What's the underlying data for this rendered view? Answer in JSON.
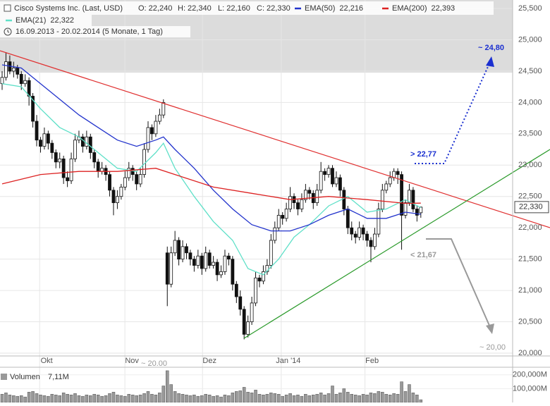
{
  "chart_data": {
    "type": "candlestick",
    "title": "Cisco Systems Inc. (Last, USD)",
    "ohlc_header": [
      "O: 22,240",
      "H: 22,340",
      "L: 22,160",
      "C: 22,330"
    ],
    "period": "16.09.2013 - 20.02.2014 (5 Monate, 1 Tag)",
    "last_price_label": "22,330",
    "up_color": "#ffffff",
    "down_color": "#111111",
    "ylim": [
      20000,
      25500
    ],
    "yticks": [
      {
        "value": 20000,
        "label": "20,000"
      },
      {
        "value": 20500,
        "label": "20,500"
      },
      {
        "value": 21000,
        "label": "21,000"
      },
      {
        "value": 21500,
        "label": "21,500"
      },
      {
        "value": 22000,
        "label": "22,000"
      },
      {
        "value": 22500,
        "label": "22,500"
      },
      {
        "value": 23000,
        "label": "23,000"
      },
      {
        "value": 23500,
        "label": "23,500"
      },
      {
        "value": 24000,
        "label": "24,000"
      },
      {
        "value": 24500,
        "label": "24,500"
      },
      {
        "value": 25000,
        "label": "25,000"
      },
      {
        "value": 25500,
        "label": "25,500"
      }
    ],
    "xlim": [
      -0.55,
      132.9
    ],
    "xticks": [
      {
        "value": 11.6,
        "label": "Okt"
      },
      {
        "value": 33.8,
        "label": "Nov"
      },
      {
        "value": 54,
        "label": "Dez"
      },
      {
        "value": 74.5,
        "label": "Jan '14"
      },
      {
        "value": 96.3,
        "label": "Feb"
      }
    ],
    "grid": true,
    "ohlc": [
      [
        24300,
        24500,
        24200,
        24400
      ],
      [
        24400,
        24800,
        24350,
        24650
      ],
      [
        24650,
        24750,
        24450,
        24500
      ],
      [
        24500,
        24650,
        24400,
        24550
      ],
      [
        24550,
        24600,
        24380,
        24450
      ],
      [
        24450,
        24500,
        24200,
        24300
      ],
      [
        24300,
        24450,
        24250,
        24350
      ],
      [
        24350,
        24400,
        23950,
        24100
      ],
      [
        24100,
        24150,
        23600,
        23700
      ],
      [
        23700,
        23800,
        23300,
        23400
      ],
      [
        23400,
        23450,
        23200,
        23300
      ],
      [
        23300,
        23600,
        23250,
        23500
      ],
      [
        23500,
        23550,
        23250,
        23350
      ],
      [
        23350,
        23400,
        23100,
        23200
      ],
      [
        23200,
        23250,
        22950,
        23050
      ],
      [
        23050,
        23200,
        22950,
        23100
      ],
      [
        23100,
        23150,
        22700,
        22800
      ],
      [
        22800,
        22900,
        22650,
        22750
      ],
      [
        22750,
        23200,
        22700,
        23100
      ],
      [
        23100,
        23500,
        23050,
        23400
      ],
      [
        23400,
        23550,
        23350,
        23450
      ],
      [
        23450,
        23500,
        23200,
        23300
      ],
      [
        23300,
        23550,
        23250,
        23450
      ],
      [
        23450,
        23500,
        23100,
        23200
      ],
      [
        23200,
        23250,
        22950,
        23050
      ],
      [
        23050,
        23100,
        22800,
        22900
      ],
      [
        22900,
        23050,
        22850,
        22950
      ],
      [
        22950,
        23000,
        22750,
        22850
      ],
      [
        22850,
        22900,
        22500,
        22600
      ],
      [
        22600,
        22650,
        22200,
        22400
      ],
      [
        22400,
        22600,
        22300,
        22500
      ],
      [
        22500,
        22700,
        22450,
        22650
      ],
      [
        22650,
        22900,
        22600,
        22800
      ],
      [
        22800,
        23050,
        22750,
        22950
      ],
      [
        22950,
        23000,
        22750,
        22850
      ],
      [
        22850,
        22900,
        22600,
        22700
      ],
      [
        22700,
        22950,
        22650,
        22850
      ],
      [
        22850,
        23350,
        22800,
        23250
      ],
      [
        23250,
        23700,
        23200,
        23600
      ],
      [
        23600,
        23650,
        23400,
        23500
      ],
      [
        23500,
        23800,
        23450,
        23700
      ],
      [
        23700,
        23900,
        23650,
        23800
      ],
      [
        23800,
        24050,
        23750,
        24000
      ],
      [
        21600,
        21700,
        20750,
        21100
      ],
      [
        21100,
        21700,
        21050,
        21600
      ],
      [
        21600,
        21950,
        21550,
        21800
      ],
      [
        21800,
        21850,
        21400,
        21500
      ],
      [
        21500,
        21800,
        21450,
        21700
      ],
      [
        21700,
        21750,
        21500,
        21600
      ],
      [
        21600,
        21650,
        21400,
        21500
      ],
      [
        21500,
        21550,
        21300,
        21400
      ],
      [
        21400,
        21650,
        21350,
        21550
      ],
      [
        21550,
        21600,
        21250,
        21350
      ],
      [
        21350,
        21700,
        21300,
        21600
      ],
      [
        21600,
        21650,
        21350,
        21400
      ],
      [
        21400,
        21550,
        21350,
        21450
      ],
      [
        21450,
        21500,
        21150,
        21250
      ],
      [
        21250,
        21400,
        21200,
        21300
      ],
      [
        21300,
        21650,
        21250,
        21550
      ],
      [
        21550,
        21600,
        21400,
        21500
      ],
      [
        21500,
        21550,
        21000,
        21100
      ],
      [
        21100,
        21150,
        20800,
        20900
      ],
      [
        20900,
        21000,
        20600,
        20700
      ],
      [
        20700,
        20750,
        20220,
        20300
      ],
      [
        20300,
        20600,
        20250,
        20500
      ],
      [
        20500,
        20900,
        20450,
        20800
      ],
      [
        20800,
        21300,
        20750,
        21200
      ],
      [
        21200,
        21250,
        21050,
        21150
      ],
      [
        21150,
        21400,
        21100,
        21300
      ],
      [
        21300,
        21500,
        21250,
        21400
      ],
      [
        21400,
        21900,
        21350,
        21800
      ],
      [
        21800,
        22100,
        21750,
        22000
      ],
      [
        22000,
        22300,
        21950,
        22200
      ],
      [
        22200,
        22250,
        22050,
        22150
      ],
      [
        22150,
        22400,
        22100,
        22300
      ],
      [
        22300,
        22650,
        22250,
        22500
      ],
      [
        22500,
        22550,
        22300,
        22400
      ],
      [
        22400,
        22450,
        22200,
        22300
      ],
      [
        22300,
        22550,
        22250,
        22450
      ],
      [
        22450,
        22700,
        22400,
        22600
      ],
      [
        22600,
        22650,
        22450,
        22550
      ],
      [
        22550,
        22600,
        22300,
        22400
      ],
      [
        22400,
        22700,
        22350,
        22600
      ],
      [
        22600,
        23050,
        22550,
        22900
      ],
      [
        22900,
        22950,
        22750,
        22850
      ],
      [
        22850,
        23000,
        22800,
        22950
      ],
      [
        22950,
        23000,
        22650,
        22700
      ],
      [
        22700,
        22900,
        22650,
        22800
      ],
      [
        22800,
        22850,
        22500,
        22600
      ],
      [
        22600,
        22650,
        22200,
        22300
      ],
      [
        22300,
        22350,
        21900,
        22000
      ],
      [
        22000,
        22100,
        21800,
        21900
      ],
      [
        21900,
        21950,
        21750,
        21850
      ],
      [
        21850,
        22100,
        21800,
        22000
      ],
      [
        22000,
        22050,
        21800,
        21900
      ],
      [
        21900,
        21950,
        21700,
        21800
      ],
      [
        21800,
        21850,
        21450,
        21700
      ],
      [
        21700,
        22000,
        21650,
        21900
      ],
      [
        21900,
        22400,
        21850,
        22300
      ],
      [
        22300,
        22700,
        22250,
        22600
      ],
      [
        22600,
        22750,
        22550,
        22700
      ],
      [
        22700,
        22900,
        22650,
        22800
      ],
      [
        22800,
        22950,
        22750,
        22900
      ],
      [
        22900,
        22950,
        22700,
        22850
      ],
      [
        22850,
        22900,
        21650,
        22200
      ],
      [
        22200,
        22450,
        22150,
        22400
      ],
      [
        22400,
        22700,
        22350,
        22600
      ],
      [
        22600,
        22650,
        22250,
        22300
      ],
      [
        22300,
        22350,
        22100,
        22200
      ],
      [
        22240,
        22340,
        22160,
        22330
      ]
    ],
    "series": [
      {
        "name": "EMA(21)",
        "value_label": "22,322",
        "color": "#5fe0c8",
        "x": [
          0,
          5,
          10,
          15,
          20,
          25,
          30,
          35,
          40,
          42,
          45,
          50,
          55,
          60,
          64,
          68,
          72,
          76,
          80,
          85,
          90,
          95,
          100,
          105,
          109
        ],
        "values": [
          24300,
          24250,
          23900,
          23600,
          23450,
          23200,
          22950,
          22900,
          23200,
          23350,
          22950,
          22500,
          22100,
          21800,
          21350,
          21250,
          21500,
          21850,
          22050,
          22350,
          22500,
          22250,
          22300,
          22450,
          22322
        ]
      },
      {
        "name": "EMA(50)",
        "value_label": "22,216",
        "color": "#2233cc",
        "x": [
          0,
          5,
          10,
          15,
          20,
          25,
          30,
          35,
          40,
          42,
          45,
          50,
          55,
          60,
          65,
          70,
          75,
          80,
          85,
          90,
          95,
          100,
          105,
          109
        ],
        "values": [
          24600,
          24550,
          24300,
          24050,
          23800,
          23600,
          23400,
          23300,
          23400,
          23450,
          23250,
          22950,
          22600,
          22300,
          22050,
          21950,
          21950,
          22050,
          22200,
          22300,
          22150,
          22150,
          22250,
          22216
        ]
      },
      {
        "name": "EMA(200)",
        "value_label": "22,393",
        "color": "#dd2222",
        "x": [
          0,
          10,
          20,
          30,
          40,
          45,
          55,
          65,
          75,
          85,
          95,
          105,
          109
        ],
        "values": [
          22700,
          22850,
          22900,
          22900,
          22950,
          22850,
          22650,
          22550,
          22450,
          22500,
          22450,
          22390,
          22393
        ]
      }
    ],
    "annotations": [
      "~ 24,80",
      "> 22,77",
      "< 21,67",
      "~ 20,00",
      "~ 20.00"
    ],
    "volume": {
      "label": "Volumen",
      "last_label": "7,11M",
      "color": "#999999",
      "ylim": [
        0,
        250000
      ],
      "yticks": [
        {
          "value": 100000,
          "label": "100,000M"
        },
        {
          "value": 200000,
          "label": "200,000M"
        }
      ],
      "values": [
        60000,
        70000,
        55000,
        50000,
        45000,
        50000,
        40000,
        75000,
        80000,
        65000,
        55000,
        50000,
        45000,
        60000,
        55000,
        50000,
        70000,
        60000,
        55000,
        65000,
        50000,
        45000,
        55000,
        50000,
        60000,
        55000,
        45000,
        50000,
        65000,
        75000,
        55000,
        50000,
        45000,
        60000,
        55000,
        50000,
        55000,
        65000,
        80000,
        60000,
        55000,
        70000,
        120000,
        230000,
        130000,
        80000,
        65000,
        60000,
        55000,
        50000,
        55000,
        45000,
        50000,
        60000,
        55000,
        45000,
        50000,
        40000,
        55000,
        50000,
        70000,
        80000,
        85000,
        110000,
        75000,
        70000,
        90000,
        60000,
        55000,
        60000,
        70000,
        65000,
        60000,
        45000,
        55000,
        65000,
        50000,
        55000,
        45000,
        60000,
        50000,
        55000,
        60000,
        70000,
        55000,
        65000,
        120000,
        60000,
        70000,
        100000,
        75000,
        60000,
        55000,
        50000,
        60000,
        55000,
        70000,
        65000,
        80000,
        75000,
        60000,
        55000,
        65000,
        60000,
        150000,
        80000,
        130000,
        70000,
        55000,
        20000
      ]
    }
  }
}
